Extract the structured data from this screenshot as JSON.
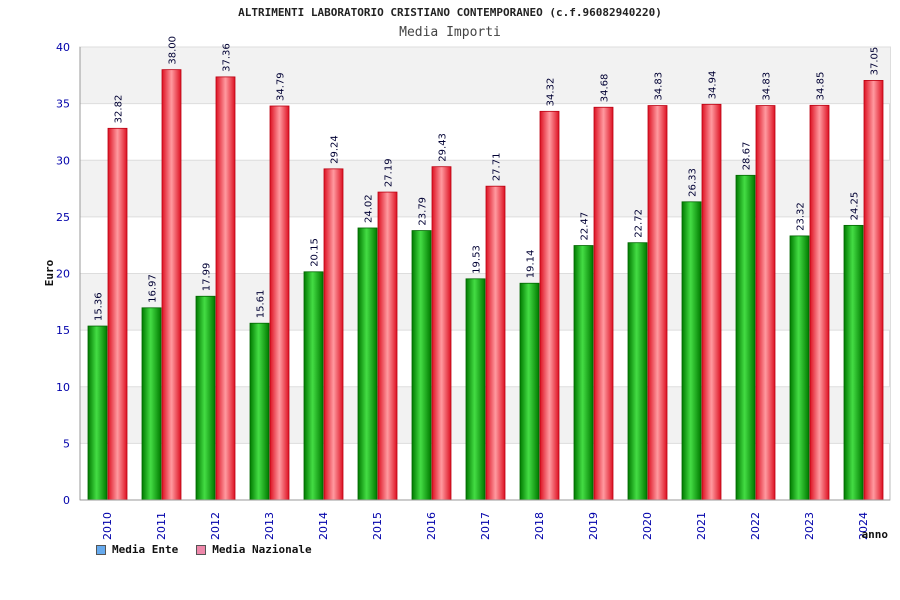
{
  "header": {
    "title": "ALTRIMENTI LABORATORIO CRISTIANO CONTEMPORANEO (c.f.96082940220)",
    "subtitle": "Media Importi"
  },
  "colors": {
    "ente": "#00aa00",
    "nazionale": "#ee2233",
    "axis_text": "#0000aa",
    "legend_ente": "#66aaee",
    "legend_nazionale": "#ee88aa"
  },
  "chart_data": {
    "type": "bar",
    "title": "ALTRIMENTI LABORATORIO CRISTIANO CONTEMPORANEO (c.f.96082940220)",
    "subtitle": "Media Importi",
    "xlabel": "anno",
    "ylabel": "Euro",
    "ylim": [
      0,
      40
    ],
    "yticks": [
      0,
      5,
      10,
      15,
      20,
      25,
      30,
      35,
      40
    ],
    "grid": true,
    "legend_position": "bottom-left",
    "categories": [
      "2010",
      "2011",
      "2012",
      "2013",
      "2014",
      "2015",
      "2016",
      "2017",
      "2018",
      "2019",
      "2020",
      "2021",
      "2022",
      "2023",
      "2024"
    ],
    "series": [
      {
        "name": "Media Ente",
        "values": [
          15.36,
          16.97,
          17.99,
          15.61,
          20.15,
          24.02,
          23.79,
          19.53,
          19.14,
          22.47,
          22.72,
          26.33,
          28.67,
          23.32,
          24.25
        ],
        "labels": [
          "15.36",
          "16.97",
          "17.99",
          "15.61",
          "20.15",
          "24.02",
          "23.79",
          "19.53",
          "19.14",
          "22.47",
          "22.72",
          "26.33",
          "28.67",
          "23.32",
          "24.25"
        ]
      },
      {
        "name": "Media Nazionale",
        "values": [
          32.82,
          38.0,
          37.36,
          34.79,
          29.24,
          27.19,
          29.43,
          27.71,
          34.32,
          34.68,
          34.83,
          34.94,
          34.83,
          34.85,
          37.05
        ],
        "labels": [
          "32.82",
          "38.00",
          "37.36",
          "34.79",
          "29.24",
          "27.19",
          "29.43",
          "27.71",
          "34.32",
          "34.68",
          "34.83",
          "34.94",
          "34.83",
          "34.85",
          "37.05"
        ]
      }
    ]
  }
}
